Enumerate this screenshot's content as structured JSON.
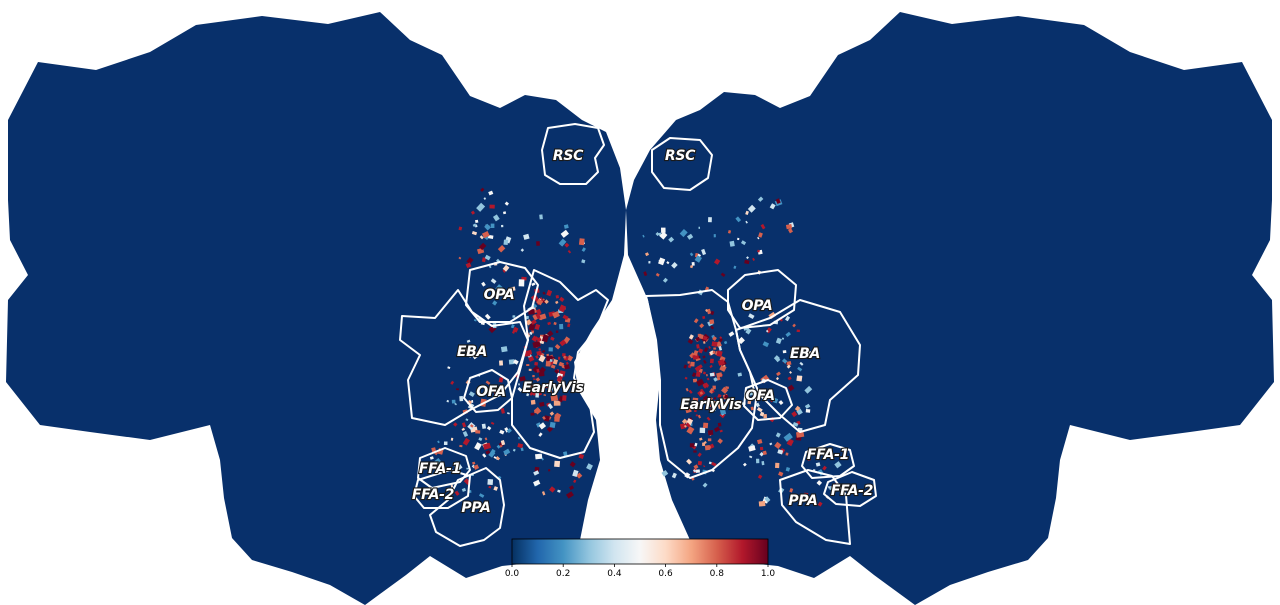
{
  "figure": {
    "background": "#ffffff",
    "cortex_color": "#08306b",
    "outline_color": "#ffffff",
    "colormap": "RdBu_r",
    "colormap_stops": [
      "#053061",
      "#2166ac",
      "#4393c3",
      "#92c5de",
      "#d1e5f0",
      "#f7f7f7",
      "#fddbc7",
      "#f4a582",
      "#d6604d",
      "#b2182b",
      "#67001f"
    ]
  },
  "hemispheres": {
    "left": {
      "roi_labels": {
        "rsc": "RSC",
        "opa": "OPA",
        "eba": "EBA",
        "ofa": "OFA",
        "earlyvis": "EarlyVis",
        "ffa1": "FFA-1",
        "ffa2": "FFA-2",
        "ppa": "PPA"
      }
    },
    "right": {
      "roi_labels": {
        "rsc": "RSC",
        "opa": "OPA",
        "eba": "EBA",
        "ofa": "OFA",
        "earlyvis": "EarlyVis",
        "ffa1": "FFA-1",
        "ffa2": "FFA-2",
        "ppa": "PPA"
      }
    }
  },
  "colorbar": {
    "min": 0.0,
    "max": 1.0,
    "ticks": [
      "0.0",
      "0.2",
      "0.4",
      "0.6",
      "0.8",
      "1.0"
    ]
  }
}
